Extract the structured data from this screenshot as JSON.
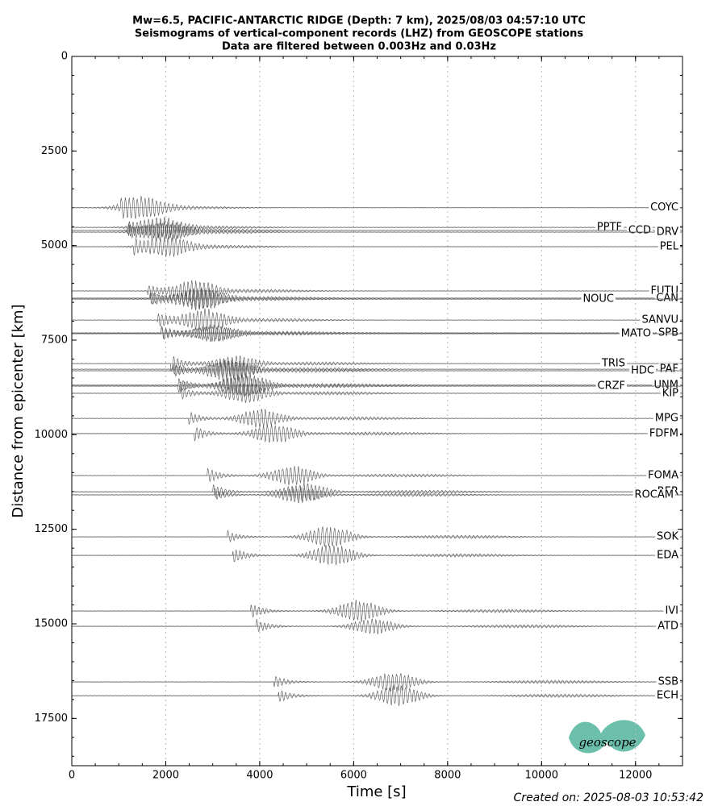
{
  "chart_data": {
    "type": "seismogram",
    "title": [
      "Mw=6.5, PACIFIC-ANTARCTIC RIDGE (Depth: 7 km), 2025/08/03 04:57:10 UTC",
      "Seismograms of vertical-component records (LHZ) from GEOSCOPE stations",
      "Data are filtered between 0.003Hz and 0.03Hz"
    ],
    "x_label": "Time [s]",
    "y_label": "Distance from epicenter [km]",
    "xlim": [
      0,
      13000
    ],
    "ylim": [
      0,
      18750
    ],
    "y_inverted": true,
    "xticks": [
      0,
      2000,
      4000,
      6000,
      8000,
      10000,
      12000
    ],
    "yticks": [
      0,
      2500,
      5000,
      7500,
      10000,
      12500,
      15000,
      17500
    ],
    "grid": "x",
    "color": "#555555",
    "categories": [
      "COYC",
      "PPTF",
      "CCD",
      "DRV",
      "PEL",
      "FUTU",
      "CAN",
      "NOUC",
      "SANVU",
      "SPB",
      "MATO",
      "TRIS",
      "PAF",
      "HDC",
      "UNM",
      "CRZF",
      "KIP",
      "MPG",
      "FDFM",
      "FOMA",
      "RER",
      "ROCAM",
      "SOK",
      "EDA",
      "IVI",
      "ATD",
      "SSB",
      "ECH"
    ],
    "values": [
      4000,
      4520,
      4600,
      4645,
      5030,
      6200,
      6390,
      6415,
      6970,
      7310,
      7330,
      8120,
      8270,
      8310,
      8690,
      8715,
      8905,
      9570,
      9970,
      11080,
      11510,
      11590,
      12700,
      13190,
      14660,
      15065,
      16535,
      16900
    ],
    "footer": "Created on: 2025-08-03 10:53:42",
    "logo": "geoscope"
  }
}
